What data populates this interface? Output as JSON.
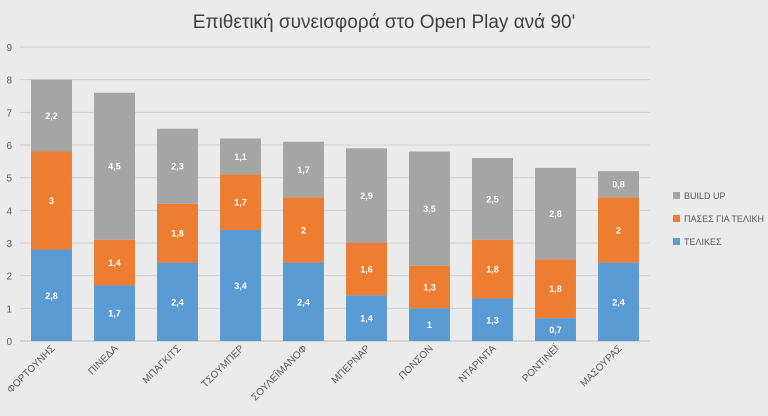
{
  "chart_data": {
    "type": "bar",
    "stacked": true,
    "title": "Επιθετική συνεισφορά στο Open Play ανά 90'",
    "xlabel": "",
    "ylabel": "",
    "ylim": [
      0,
      9
    ],
    "yticks": [
      "0",
      "1",
      "2",
      "3",
      "4",
      "5",
      "6",
      "7",
      "8",
      "9"
    ],
    "grid": true,
    "legend_position": "right",
    "categories": [
      "ΦΟΡΤΟΥΝΗΣ",
      "ΠΙΝΕΔΑ",
      "ΜΠΑΓΚΙΤΣ",
      "ΤΣΟΥΜΠΕΡ",
      "ΣΟΥΛΕΪΜΑΝΟΦ",
      "ΜΠΕΡΝΑΡ",
      "ΠΟΝΣΟΝ",
      "ΝΤΑΡΙΝΤΑ",
      "ΡΟΝΤΙΝΕΪ",
      "ΜΑΣΟΥΡΑΣ"
    ],
    "series": [
      {
        "name": "ΤΕΛΙΚΕΣ",
        "color": "#5b9bd5",
        "values": [
          2.8,
          1.7,
          2.4,
          3.4,
          2.4,
          1.4,
          1,
          1.3,
          0.7,
          2.4
        ],
        "labels": [
          "2,8",
          "1,7",
          "2,4",
          "3,4",
          "2,4",
          "1,4",
          "1",
          "1,3",
          "0,7",
          "2,4"
        ]
      },
      {
        "name": "ΠΑΣΕΣ ΓΙΑ ΤΕΛΙΚΗ",
        "color": "#ed7d31",
        "values": [
          3,
          1.4,
          1.8,
          1.7,
          2,
          1.6,
          1.3,
          1.8,
          1.8,
          2
        ],
        "labels": [
          "3",
          "1,4",
          "1,8",
          "1,7",
          "2",
          "1,6",
          "1,3",
          "1,8",
          "1,8",
          "2"
        ]
      },
      {
        "name": "BUILD UP",
        "color": "#a5a5a5",
        "values": [
          2.2,
          4.5,
          2.3,
          1.1,
          1.7,
          2.9,
          3.5,
          2.5,
          2.8,
          0.8
        ],
        "labels": [
          "2,2",
          "4,5",
          "2,3",
          "1,1",
          "1,7",
          "2,9",
          "3,5",
          "2,5",
          "2,8",
          "0,8"
        ]
      }
    ],
    "legend_order": [
      "BUILD UP",
      "ΠΑΣΕΣ ΓΙΑ ΤΕΛΙΚΗ",
      "ΤΕΛΙΚΕΣ"
    ]
  }
}
